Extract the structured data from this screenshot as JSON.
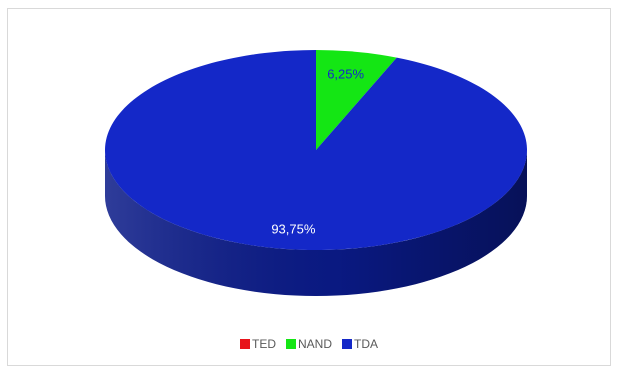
{
  "chart_data": {
    "type": "pie",
    "style": "3d",
    "categories": [
      "TED",
      "NAND",
      "TDA"
    ],
    "values": [
      0,
      6.25,
      93.75
    ],
    "data_labels": [
      "",
      "6,25%",
      "93,75%"
    ],
    "colors": [
      "#e8141b",
      "#14e614",
      "#1428c8"
    ],
    "side_colors": [
      "#8a0c10",
      "#0c8a0c",
      "#0a1a88"
    ],
    "label_colors": [
      "#ffffff",
      "#1428c8",
      "#ffffff"
    ],
    "legend_position": "bottom",
    "title": "",
    "legend": [
      {
        "label": "TED",
        "color": "#e8141b"
      },
      {
        "label": "NAND",
        "color": "#14e614"
      },
      {
        "label": "TDA",
        "color": "#1428c8"
      }
    ]
  }
}
